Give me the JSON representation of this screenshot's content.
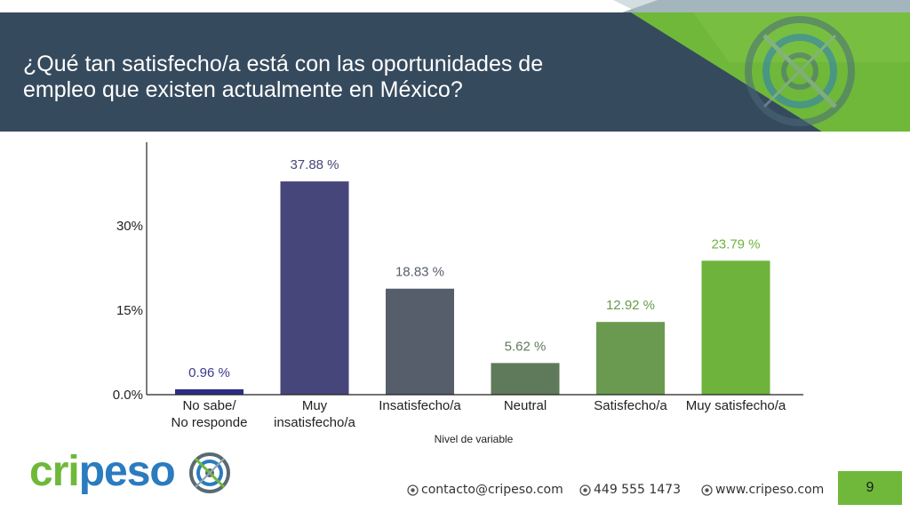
{
  "slide": {
    "title": "¿Qué tan satisfecho/a está con las oportunidades de empleo que existen actualmente en México?",
    "title_line1": "¿Qué tan satisfecho/a está con las oportunidades de",
    "title_line2": "empleo que existen actualmente en México?",
    "page_number": "9"
  },
  "colors": {
    "title_band": "#364a5e",
    "accent_green": "#6fb83a",
    "logo_blue": "#2b7bbf"
  },
  "logo": {
    "text_green": "cri",
    "text_blue": "peso",
    "icon": "target-icon"
  },
  "footer": {
    "email": "contacto@cripeso.com",
    "phone": "449 555 1473",
    "website": "www.cripeso.com",
    "icon": "globe-icon"
  },
  "chart_data": {
    "type": "bar",
    "categories": [
      [
        "No sabe/",
        "No responde"
      ],
      [
        "Muy",
        "insatisfecho/a"
      ],
      [
        "Insatisfecho/a"
      ],
      [
        "Neutral"
      ],
      [
        "Satisfecho/a"
      ],
      [
        "Muy satisfecho/a"
      ]
    ],
    "values": [
      0.96,
      37.88,
      18.83,
      5.62,
      12.92,
      23.79
    ],
    "value_labels": [
      "0.96 %",
      "37.88 %",
      "18.83 %",
      "5.62 %",
      "12.92 %",
      "23.79 %"
    ],
    "bar_colors": [
      "#2d2d86",
      "#47467a",
      "#565e6c",
      "#5f7a5a",
      "#6a9a4f",
      "#6db33c"
    ],
    "label_colors": [
      "#3a3a8c",
      "#47467a",
      "#565e6c",
      "#5f7a5a",
      "#6a9a4f",
      "#6db33c"
    ],
    "title": "",
    "xlabel": "Nivel de variable",
    "ylabel": "",
    "yticks": [
      0,
      15,
      30
    ],
    "ytick_labels": [
      "0.0%",
      "15%",
      "30%"
    ],
    "ylim": [
      0,
      45
    ],
    "grid": false
  }
}
